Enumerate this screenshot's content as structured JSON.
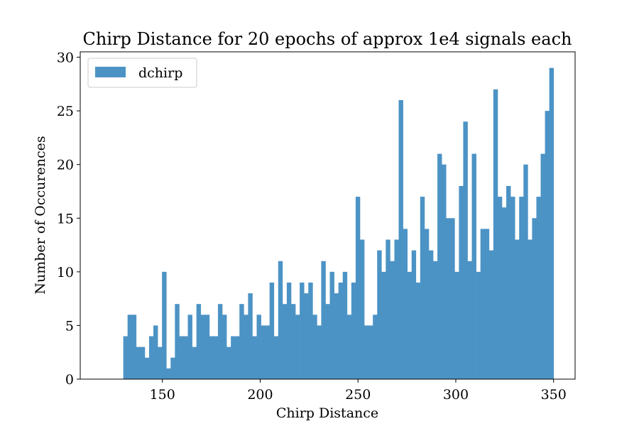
{
  "chart_data": {
    "type": "bar",
    "title": "Chirp Distance for 20 epochs of approx 1e4 signals each",
    "xlabel": "Chirp Distance",
    "ylabel": "Number of Occurences",
    "xlim": [
      108,
      361
    ],
    "ylim": [
      0,
      30.5
    ],
    "x_ticks": [
      150,
      200,
      250,
      300,
      350
    ],
    "y_ticks": [
      0,
      5,
      10,
      15,
      20,
      25,
      30
    ],
    "grid": false,
    "legend_position": "top-left",
    "series": [
      {
        "name": "dchirp",
        "color": "#4c93c5",
        "bin_start": 130,
        "bin_end": 350,
        "values": [
          4,
          6,
          6,
          3,
          3,
          2,
          4,
          5,
          3,
          10,
          1,
          2,
          7,
          4,
          4,
          6,
          3,
          7,
          6,
          6,
          4,
          4,
          7,
          6,
          3,
          4,
          4,
          7,
          6,
          8,
          4,
          6,
          5,
          5,
          9,
          4,
          11,
          7,
          9,
          7,
          6,
          9,
          8,
          9,
          6,
          5,
          11,
          7,
          10,
          8,
          9,
          10,
          6,
          9,
          17,
          13,
          5,
          5,
          6,
          12,
          10,
          13,
          11,
          13,
          26,
          14,
          10,
          12,
          9,
          17,
          14,
          12,
          11,
          21,
          20,
          15,
          15,
          10,
          18,
          24,
          11,
          21,
          10,
          14,
          14,
          12,
          27,
          17,
          16,
          18,
          17,
          13,
          17,
          20,
          13,
          15,
          17,
          21,
          25,
          29
        ]
      }
    ]
  }
}
